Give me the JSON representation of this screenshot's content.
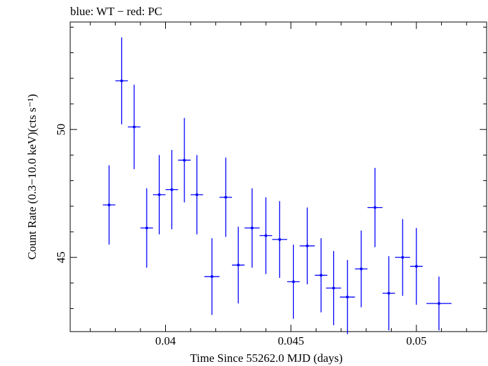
{
  "chart_data": {
    "type": "scatter",
    "title": "blue: WT − red: PC",
    "xlabel": "Time Since 55262.0 MJD (days)",
    "ylabel": "Count Rate (0.3−10.0 keV)(cts s⁻¹)",
    "xlim": [
      0.0362,
      0.0528
    ],
    "ylim": [
      42.1,
      54.2
    ],
    "x_ticks": [
      {
        "value": 0.04,
        "label": "0.04"
      },
      {
        "value": 0.045,
        "label": "0.045"
      },
      {
        "value": 0.05,
        "label": "0.05"
      }
    ],
    "y_ticks": [
      {
        "value": 45,
        "label": "45"
      },
      {
        "value": 50,
        "label": "50"
      }
    ],
    "grid": false,
    "series": [
      {
        "color": "#0000ff",
        "points": [
          {
            "x": 0.03775,
            "xerr": 0.00025,
            "y": 47.05,
            "yerr": 1.55
          },
          {
            "x": 0.03825,
            "xerr": 0.00025,
            "y": 51.9,
            "yerr": 1.7
          },
          {
            "x": 0.03875,
            "xerr": 0.00025,
            "y": 50.1,
            "yerr": 1.65
          },
          {
            "x": 0.03925,
            "xerr": 0.00025,
            "y": 46.15,
            "yerr": 1.55
          },
          {
            "x": 0.03975,
            "xerr": 0.00025,
            "y": 47.45,
            "yerr": 1.55
          },
          {
            "x": 0.04025,
            "xerr": 0.00025,
            "y": 47.65,
            "yerr": 1.55
          },
          {
            "x": 0.04075,
            "xerr": 0.00025,
            "y": 48.8,
            "yerr": 1.65
          },
          {
            "x": 0.04125,
            "xerr": 0.00025,
            "y": 47.45,
            "yerr": 1.55
          },
          {
            "x": 0.04185,
            "xerr": 0.0003,
            "y": 44.25,
            "yerr": 1.5
          },
          {
            "x": 0.0424,
            "xerr": 0.00025,
            "y": 47.35,
            "yerr": 1.55
          },
          {
            "x": 0.0429,
            "xerr": 0.00025,
            "y": 44.7,
            "yerr": 1.5
          },
          {
            "x": 0.04345,
            "xerr": 0.0003,
            "y": 46.15,
            "yerr": 1.55
          },
          {
            "x": 0.044,
            "xerr": 0.00025,
            "y": 45.85,
            "yerr": 1.5
          },
          {
            "x": 0.04455,
            "xerr": 0.0003,
            "y": 45.7,
            "yerr": 1.5
          },
          {
            "x": 0.0451,
            "xerr": 0.00025,
            "y": 44.05,
            "yerr": 1.45
          },
          {
            "x": 0.04565,
            "xerr": 0.0003,
            "y": 45.45,
            "yerr": 1.5
          },
          {
            "x": 0.0462,
            "xerr": 0.00025,
            "y": 44.3,
            "yerr": 1.45
          },
          {
            "x": 0.0467,
            "xerr": 0.0003,
            "y": 43.8,
            "yerr": 1.45
          },
          {
            "x": 0.04725,
            "xerr": 0.0003,
            "y": 43.45,
            "yerr": 1.45
          },
          {
            "x": 0.0478,
            "xerr": 0.00025,
            "y": 44.55,
            "yerr": 1.5
          },
          {
            "x": 0.04835,
            "xerr": 0.0003,
            "y": 46.95,
            "yerr": 1.55
          },
          {
            "x": 0.0489,
            "xerr": 0.00025,
            "y": 43.6,
            "yerr": 1.45
          },
          {
            "x": 0.04945,
            "xerr": 0.0003,
            "y": 45.0,
            "yerr": 1.5
          },
          {
            "x": 0.05,
            "xerr": 0.00025,
            "y": 44.65,
            "yerr": 1.5
          },
          {
            "x": 0.0509,
            "xerr": 0.0005,
            "y": 43.2,
            "yerr": 1.05
          }
        ]
      }
    ]
  }
}
